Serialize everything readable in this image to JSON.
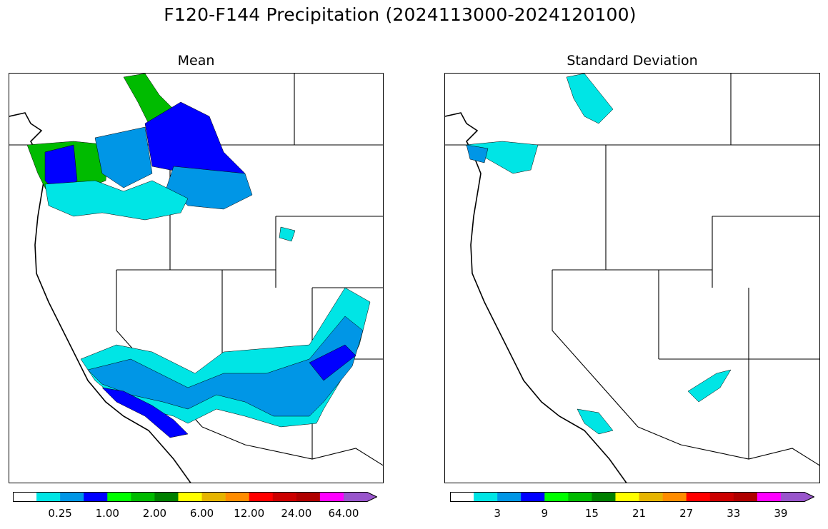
{
  "figure": {
    "title": "F120-F144 Precipitation (2024113000-2024120100)"
  },
  "panels": [
    {
      "title": "Mean",
      "colorbar": {
        "colors": [
          "#ffffff",
          "#00e5e5",
          "#0096e6",
          "#0000ff",
          "#00ff00",
          "#00bb00",
          "#008000",
          "#ffff00",
          "#e6b400",
          "#ff8c00",
          "#ff0000",
          "#cc0000",
          "#b00000",
          "#ff00ff",
          "#9955cc"
        ],
        "tick_labels": [
          "0.25",
          "1.00",
          "2.00",
          "6.00",
          "12.00",
          "24.00",
          "64.00"
        ],
        "extend": "max"
      },
      "shaded_regions": [
        {
          "region": "Olympic Peninsula / Puget Sound",
          "class": "green"
        },
        {
          "region": "Northern Cascades (British Columbia)",
          "class": "green"
        },
        {
          "region": "Northern Idaho / NW Montana",
          "class": "blue"
        },
        {
          "region": "Eastern Washington / Oregon",
          "class": "cyan"
        },
        {
          "region": "Southern California coast",
          "class": "blue"
        },
        {
          "region": "Arizona / southern Utah",
          "class": "sky-blue"
        },
        {
          "region": "Western Colorado",
          "class": "sky-blue"
        }
      ]
    },
    {
      "title": "Standard Deviation",
      "colorbar": {
        "colors": [
          "#ffffff",
          "#00e5e5",
          "#0096e6",
          "#0000ff",
          "#00ff00",
          "#00bb00",
          "#008000",
          "#ffff00",
          "#e6b400",
          "#ff8c00",
          "#ff0000",
          "#cc0000",
          "#b00000",
          "#ff00ff",
          "#9955cc"
        ],
        "tick_labels": [
          "3",
          "9",
          "15",
          "21",
          "27",
          "33",
          "39"
        ],
        "extend": "max"
      },
      "shaded_regions": [
        {
          "region": "Northern Cascades (British Columbia)",
          "class": "cyan"
        },
        {
          "region": "Olympic Peninsula / Puget Sound",
          "class": "sky-blue"
        },
        {
          "region": "Southern California coast",
          "class": "cyan"
        },
        {
          "region": "Central Arizona",
          "class": "cyan"
        }
      ]
    }
  ]
}
